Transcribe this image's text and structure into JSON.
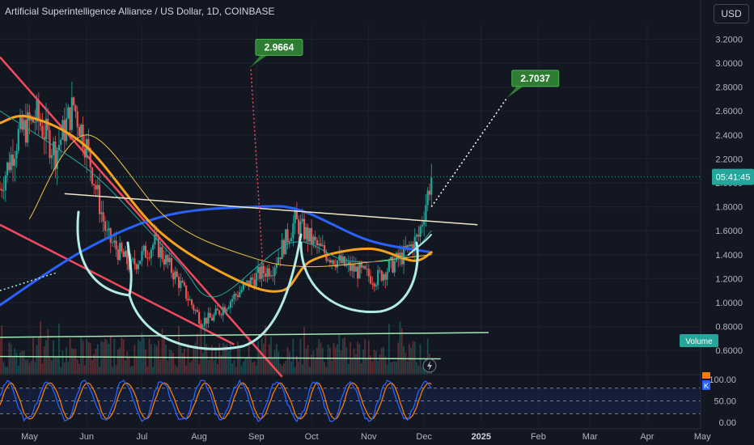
{
  "header": {
    "title": "Artificial Superintelligence Alliance / US Dollar, 1D, COINBASE"
  },
  "toolbar": {
    "currency": "USD"
  },
  "colors": {
    "background": "#131722",
    "up": "#26a69a",
    "down": "#ef5350",
    "ma_blue": "#2962ff",
    "ma_orange": "#f7a21b",
    "ma_yellow": "#f5c542",
    "ma_teal": "#26a69a",
    "trendline_red": "#f2495c",
    "cup_handle": "#b2ebe4",
    "resistance": "#f0e6c8",
    "support_green": "#a5e8b6",
    "target_green": "#2e7d32",
    "stoch_k": "#2962ff",
    "stoch_d": "#f57c00"
  },
  "chart_data": {
    "type": "candlestick",
    "symbol": "Artificial Superintelligence Alliance / US Dollar",
    "interval": "1D",
    "exchange": "COINBASE",
    "price_axis": {
      "ticks": [
        "3.2000",
        "3.0000",
        "2.8000",
        "2.6000",
        "2.4000",
        "2.2000",
        "2.0000",
        "1.8000",
        "1.6000",
        "1.4000",
        "1.2000",
        "1.0000",
        "0.8000",
        "0.6000"
      ],
      "ylim": [
        0.38,
        3.3
      ],
      "last_price_time": "05:41:45",
      "last_price": 2.05,
      "volume_label": "Volume"
    },
    "time_axis": {
      "labels": [
        "May",
        "Jun",
        "Jul",
        "Aug",
        "Sep",
        "Oct",
        "Nov",
        "Dec",
        "2025",
        "Feb",
        "Mar",
        "Apr",
        "May"
      ]
    },
    "price_path": [
      [
        "2024-04-15",
        1.95
      ],
      [
        "2024-04-25",
        2.4
      ],
      [
        "2024-05-05",
        2.55
      ],
      [
        "2024-05-15",
        2.25
      ],
      [
        "2024-05-25",
        2.65
      ],
      [
        "2024-06-01",
        2.3
      ],
      [
        "2024-06-12",
        1.55
      ],
      [
        "2024-06-25",
        1.3
      ],
      [
        "2024-07-08",
        1.5
      ],
      [
        "2024-07-20",
        1.2
      ],
      [
        "2024-08-02",
        0.85
      ],
      [
        "2024-08-08",
        0.87
      ],
      [
        "2024-08-20",
        1.05
      ],
      [
        "2024-09-01",
        1.22
      ],
      [
        "2024-09-10",
        1.3
      ],
      [
        "2024-09-22",
        1.68
      ],
      [
        "2024-10-05",
        1.45
      ],
      [
        "2024-10-20",
        1.3
      ],
      [
        "2024-11-05",
        1.2
      ],
      [
        "2024-11-20",
        1.4
      ],
      [
        "2024-11-28",
        1.55
      ],
      [
        "2024-12-05",
        2.05
      ]
    ],
    "moving_averages": [
      {
        "color": "#2962ff",
        "points": [
          [
            "2024-04-15",
            0.98
          ],
          [
            "2024-06-01",
            1.45
          ],
          [
            "2024-07-15",
            1.73
          ],
          [
            "2024-09-01",
            1.8
          ],
          [
            "2024-09-25",
            1.77
          ],
          [
            "2024-11-01",
            1.52
          ],
          [
            "2024-12-05",
            1.42
          ]
        ]
      },
      {
        "color": "#f7a21b",
        "points": [
          [
            "2024-04-15",
            2.5
          ],
          [
            "2024-05-01",
            2.55
          ],
          [
            "2024-06-01",
            2.3
          ],
          [
            "2024-07-10",
            1.6
          ],
          [
            "2024-08-20",
            1.2
          ],
          [
            "2024-09-15",
            1.1
          ],
          [
            "2024-10-01",
            1.35
          ],
          [
            "2024-11-01",
            1.45
          ],
          [
            "2024-11-25",
            1.35
          ],
          [
            "2024-12-05",
            1.42
          ]
        ]
      },
      {
        "color": "#f5c542",
        "points": [
          [
            "2024-05-01",
            1.7
          ],
          [
            "2024-06-01",
            2.4
          ],
          [
            "2024-07-15",
            1.7
          ],
          [
            "2024-08-25",
            1.4
          ],
          [
            "2024-10-01",
            1.3
          ],
          [
            "2024-12-05",
            1.4
          ]
        ]
      },
      {
        "color": "#26a69a",
        "points": [
          [
            "2024-04-15",
            2.6
          ],
          [
            "2024-05-15",
            2.3
          ],
          [
            "2024-06-10",
            2.0
          ],
          [
            "2024-07-20",
            1.35
          ],
          [
            "2024-08-10",
            1.05
          ],
          [
            "2024-09-20",
            1.5
          ],
          [
            "2024-10-20",
            1.35
          ],
          [
            "2024-11-20",
            1.38
          ],
          [
            "2024-12-05",
            1.6
          ]
        ]
      }
    ],
    "drawings": {
      "red_trendlines": [
        [
          [
            "2024-04-15",
            3.05
          ],
          [
            "2024-09-15",
            0.38
          ]
        ],
        [
          [
            "2024-04-15",
            1.65
          ],
          [
            "2024-08-20",
            0.65
          ]
        ]
      ],
      "resistance_line": [
        [
          "2024-05-20",
          1.91
        ],
        [
          "2024-12-30",
          1.65
        ]
      ],
      "support_lines": [
        [
          [
            "2024-04-15",
            0.71
          ],
          [
            "2025-01-05",
            0.75
          ]
        ],
        [
          [
            "2024-04-15",
            0.55
          ],
          [
            "2024-12-10",
            0.53
          ]
        ]
      ],
      "targets": [
        {
          "label": "2.9664",
          "from": [
            "2024-09-05",
            1.18
          ],
          "to": [
            "2024-08-29",
            2.97
          ]
        },
        {
          "label": "2.7037",
          "from": [
            "2024-12-05",
            1.8
          ],
          "to": [
            "2025-01-15",
            2.71
          ]
        }
      ]
    },
    "stochastic": {
      "ticks": [
        "100.00",
        "50.00",
        "0.00"
      ],
      "ylim": [
        0,
        100
      ],
      "levels": [
        80,
        20
      ]
    }
  }
}
